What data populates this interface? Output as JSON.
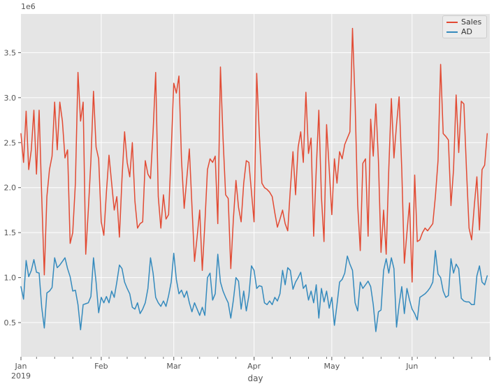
{
  "style": {
    "figure_bg": "#ffffff",
    "plot_bg": "#e5e5e5",
    "grid_color": "#ffffff",
    "tick_color": "#555555",
    "text_color": "#555555",
    "legend_bg": "#ececec",
    "legend_border": "#cccccc",
    "legend_text_color": "#333333",
    "sales_color": "#e24a33",
    "ad_color": "#348abd"
  },
  "chart_data": {
    "type": "line",
    "title": "",
    "xlabel": "day",
    "ylabel": "",
    "offset_label": "1e6",
    "grid": true,
    "legend_position": "upper right",
    "ylim": [
      0.12,
      3.93
    ],
    "y_ticks": [
      0.5,
      1.0,
      1.5,
      2.0,
      2.5,
      3.0,
      3.5
    ],
    "y_tick_labels": [
      "0.5",
      "1.0",
      "1.5",
      "2.0",
      "2.5",
      "3.0",
      "3.5"
    ],
    "x_range_days": [
      0,
      181
    ],
    "x_major_ticks": [
      {
        "label": "Jan",
        "sub": "2019",
        "day": 0
      },
      {
        "label": "Feb",
        "sub": "",
        "day": 31
      },
      {
        "label": "Mar",
        "sub": "",
        "day": 59
      },
      {
        "label": "Apr",
        "sub": "",
        "day": 90
      },
      {
        "label": "May",
        "sub": "",
        "day": 120
      },
      {
        "label": "Jun",
        "sub": "",
        "day": 151
      },
      {
        "label": "",
        "sub": "",
        "day": 181
      }
    ],
    "x_minor_ticks": {
      "start_day": 6,
      "interval_days": 7
    },
    "series": [
      {
        "name": "Sales",
        "color": "#e24a33",
        "values": [
          2.6,
          2.28,
          2.85,
          2.2,
          2.42,
          2.86,
          2.15,
          2.86,
          1.9,
          1.03,
          1.9,
          2.2,
          2.35,
          2.95,
          2.42,
          2.95,
          2.74,
          2.33,
          2.42,
          1.38,
          1.5,
          2.05,
          3.28,
          2.74,
          2.95,
          1.26,
          1.75,
          2.3,
          3.07,
          2.45,
          2.32,
          1.62,
          1.47,
          1.95,
          2.36,
          2.05,
          1.75,
          1.9,
          1.45,
          2.1,
          2.62,
          2.28,
          2.12,
          2.5,
          1.85,
          1.55,
          1.6,
          1.62,
          2.3,
          2.15,
          2.1,
          2.62,
          3.28,
          1.9,
          1.55,
          1.92,
          1.65,
          1.7,
          2.4,
          3.16,
          3.05,
          3.24,
          2.3,
          1.77,
          2.1,
          2.43,
          1.8,
          1.18,
          1.45,
          1.75,
          1.08,
          1.6,
          2.2,
          2.32,
          2.28,
          2.35,
          1.6,
          3.34,
          2.55,
          1.92,
          1.88,
          1.1,
          1.65,
          2.08,
          1.78,
          1.62,
          2.05,
          2.3,
          2.28,
          1.95,
          1.62,
          3.27,
          2.6,
          2.05,
          2.0,
          1.98,
          1.95,
          1.9,
          1.72,
          1.56,
          1.65,
          1.75,
          1.6,
          1.52,
          1.98,
          2.4,
          1.92,
          2.45,
          2.62,
          2.28,
          3.06,
          2.38,
          2.55,
          1.46,
          2.2,
          2.86,
          1.9,
          1.4,
          2.7,
          2.2,
          1.7,
          2.32,
          2.05,
          2.4,
          2.32,
          2.48,
          2.55,
          2.62,
          3.77,
          2.95,
          1.81,
          1.3,
          2.27,
          2.32,
          1.46,
          2.76,
          2.35,
          2.93,
          2.3,
          1.28,
          1.75,
          1.26,
          2.2,
          2.99,
          2.33,
          2.7,
          3.01,
          2.2,
          1.16,
          1.5,
          1.83,
          0.95,
          2.14,
          1.4,
          1.42,
          1.5,
          1.55,
          1.52,
          1.56,
          1.6,
          1.9,
          2.3,
          3.37,
          2.6,
          2.57,
          2.53,
          1.8,
          2.2,
          3.03,
          2.39,
          2.96,
          2.93,
          2.2,
          1.55,
          1.42,
          1.8,
          2.12,
          1.53,
          2.2,
          2.25,
          2.6
        ]
      },
      {
        "name": "AD",
        "color": "#348abd",
        "values": [
          0.9,
          0.76,
          1.19,
          1.01,
          1.08,
          1.2,
          1.06,
          1.05,
          0.67,
          0.44,
          0.83,
          0.85,
          0.89,
          1.22,
          1.11,
          1.14,
          1.18,
          1.22,
          1.1,
          1.01,
          0.85,
          0.86,
          0.7,
          0.42,
          0.7,
          0.71,
          0.72,
          0.79,
          1.22,
          0.95,
          0.61,
          0.78,
          0.72,
          0.79,
          0.72,
          0.85,
          0.78,
          0.95,
          1.14,
          1.1,
          0.95,
          0.88,
          0.82,
          0.67,
          0.65,
          0.72,
          0.6,
          0.65,
          0.72,
          0.88,
          1.22,
          1.05,
          0.78,
          0.72,
          0.68,
          0.74,
          0.68,
          0.8,
          0.95,
          1.27,
          0.98,
          0.82,
          0.86,
          0.78,
          0.85,
          0.72,
          0.62,
          0.72,
          0.65,
          0.58,
          0.67,
          0.58,
          1.0,
          1.05,
          0.75,
          0.82,
          1.26,
          0.95,
          0.85,
          0.78,
          0.72,
          0.55,
          0.75,
          1.0,
          0.96,
          0.65,
          0.85,
          0.63,
          0.8,
          1.13,
          1.08,
          0.88,
          0.91,
          0.9,
          0.72,
          0.7,
          0.74,
          0.7,
          0.78,
          0.74,
          0.82,
          1.08,
          0.92,
          1.11,
          1.08,
          0.87,
          0.95,
          1.0,
          1.06,
          0.88,
          0.92,
          0.75,
          0.85,
          0.72,
          0.92,
          0.55,
          0.88,
          0.73,
          0.85,
          0.66,
          0.78,
          0.47,
          0.7,
          0.95,
          0.98,
          1.05,
          1.24,
          1.15,
          1.08,
          0.72,
          0.63,
          0.95,
          0.88,
          0.92,
          0.96,
          0.9,
          0.7,
          0.4,
          0.62,
          0.64,
          1.08,
          1.21,
          1.05,
          1.22,
          1.1,
          0.45,
          0.7,
          0.9,
          0.6,
          0.88,
          0.75,
          0.65,
          0.6,
          0.53,
          0.78,
          0.8,
          0.82,
          0.85,
          0.89,
          0.95,
          1.3,
          1.04,
          1.0,
          0.85,
          0.78,
          0.8,
          1.21,
          1.05,
          1.15,
          1.1,
          0.77,
          0.74,
          0.73,
          0.73,
          0.7,
          0.7,
          1.02,
          1.13,
          0.95,
          0.92,
          1.02
        ]
      }
    ]
  },
  "legend": {
    "entries": [
      "Sales",
      "AD"
    ]
  }
}
